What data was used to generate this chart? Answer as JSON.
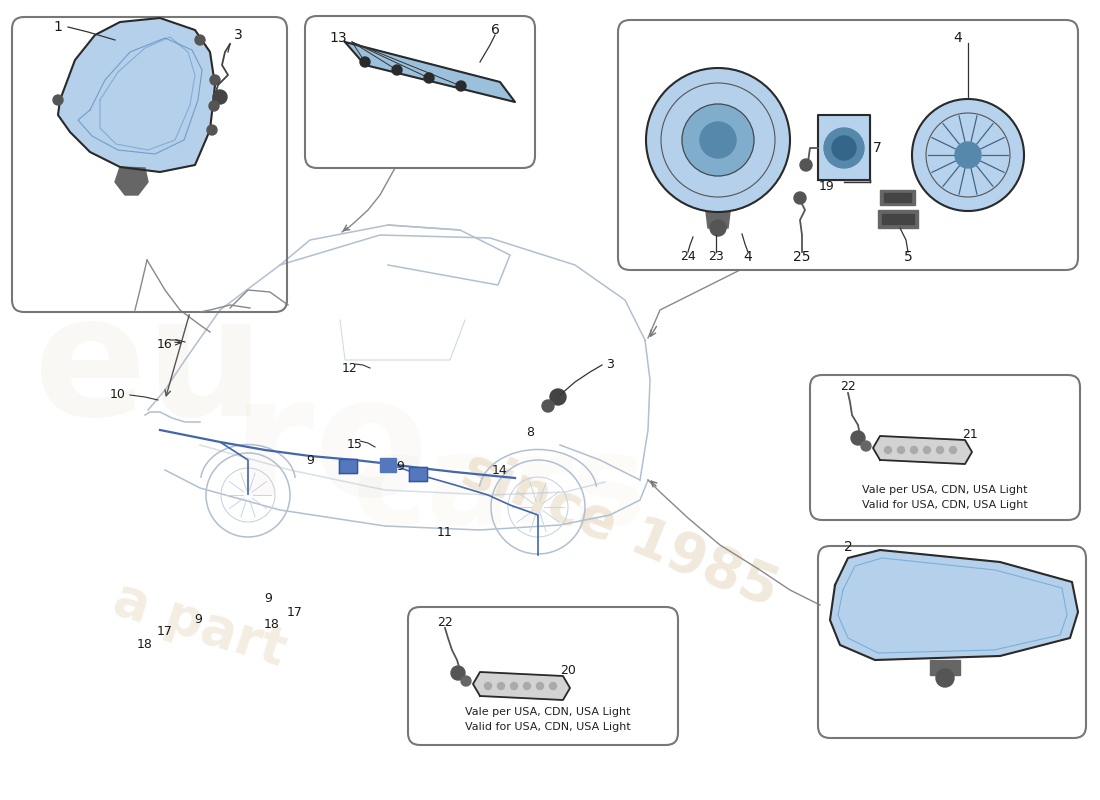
{
  "bg": "#ffffff",
  "lb": "#a8c8e8",
  "db": "#4a7aaa",
  "lc": "#333333",
  "bc": "#555555",
  "wm1": "#d4c0a0",
  "wm2": "#c8a870",
  "tc": "#1a1a1a",
  "car_c": "#b0c0d0",
  "wire_c": "#4466aa",
  "note_bottom": [
    "Vale per USA, CDN, USA Light",
    "Valid for USA, CDN, USA Light"
  ],
  "note_right": [
    "Vale per USA, CDN, USA Light",
    "Valid for USA, CDN, USA Light"
  ]
}
